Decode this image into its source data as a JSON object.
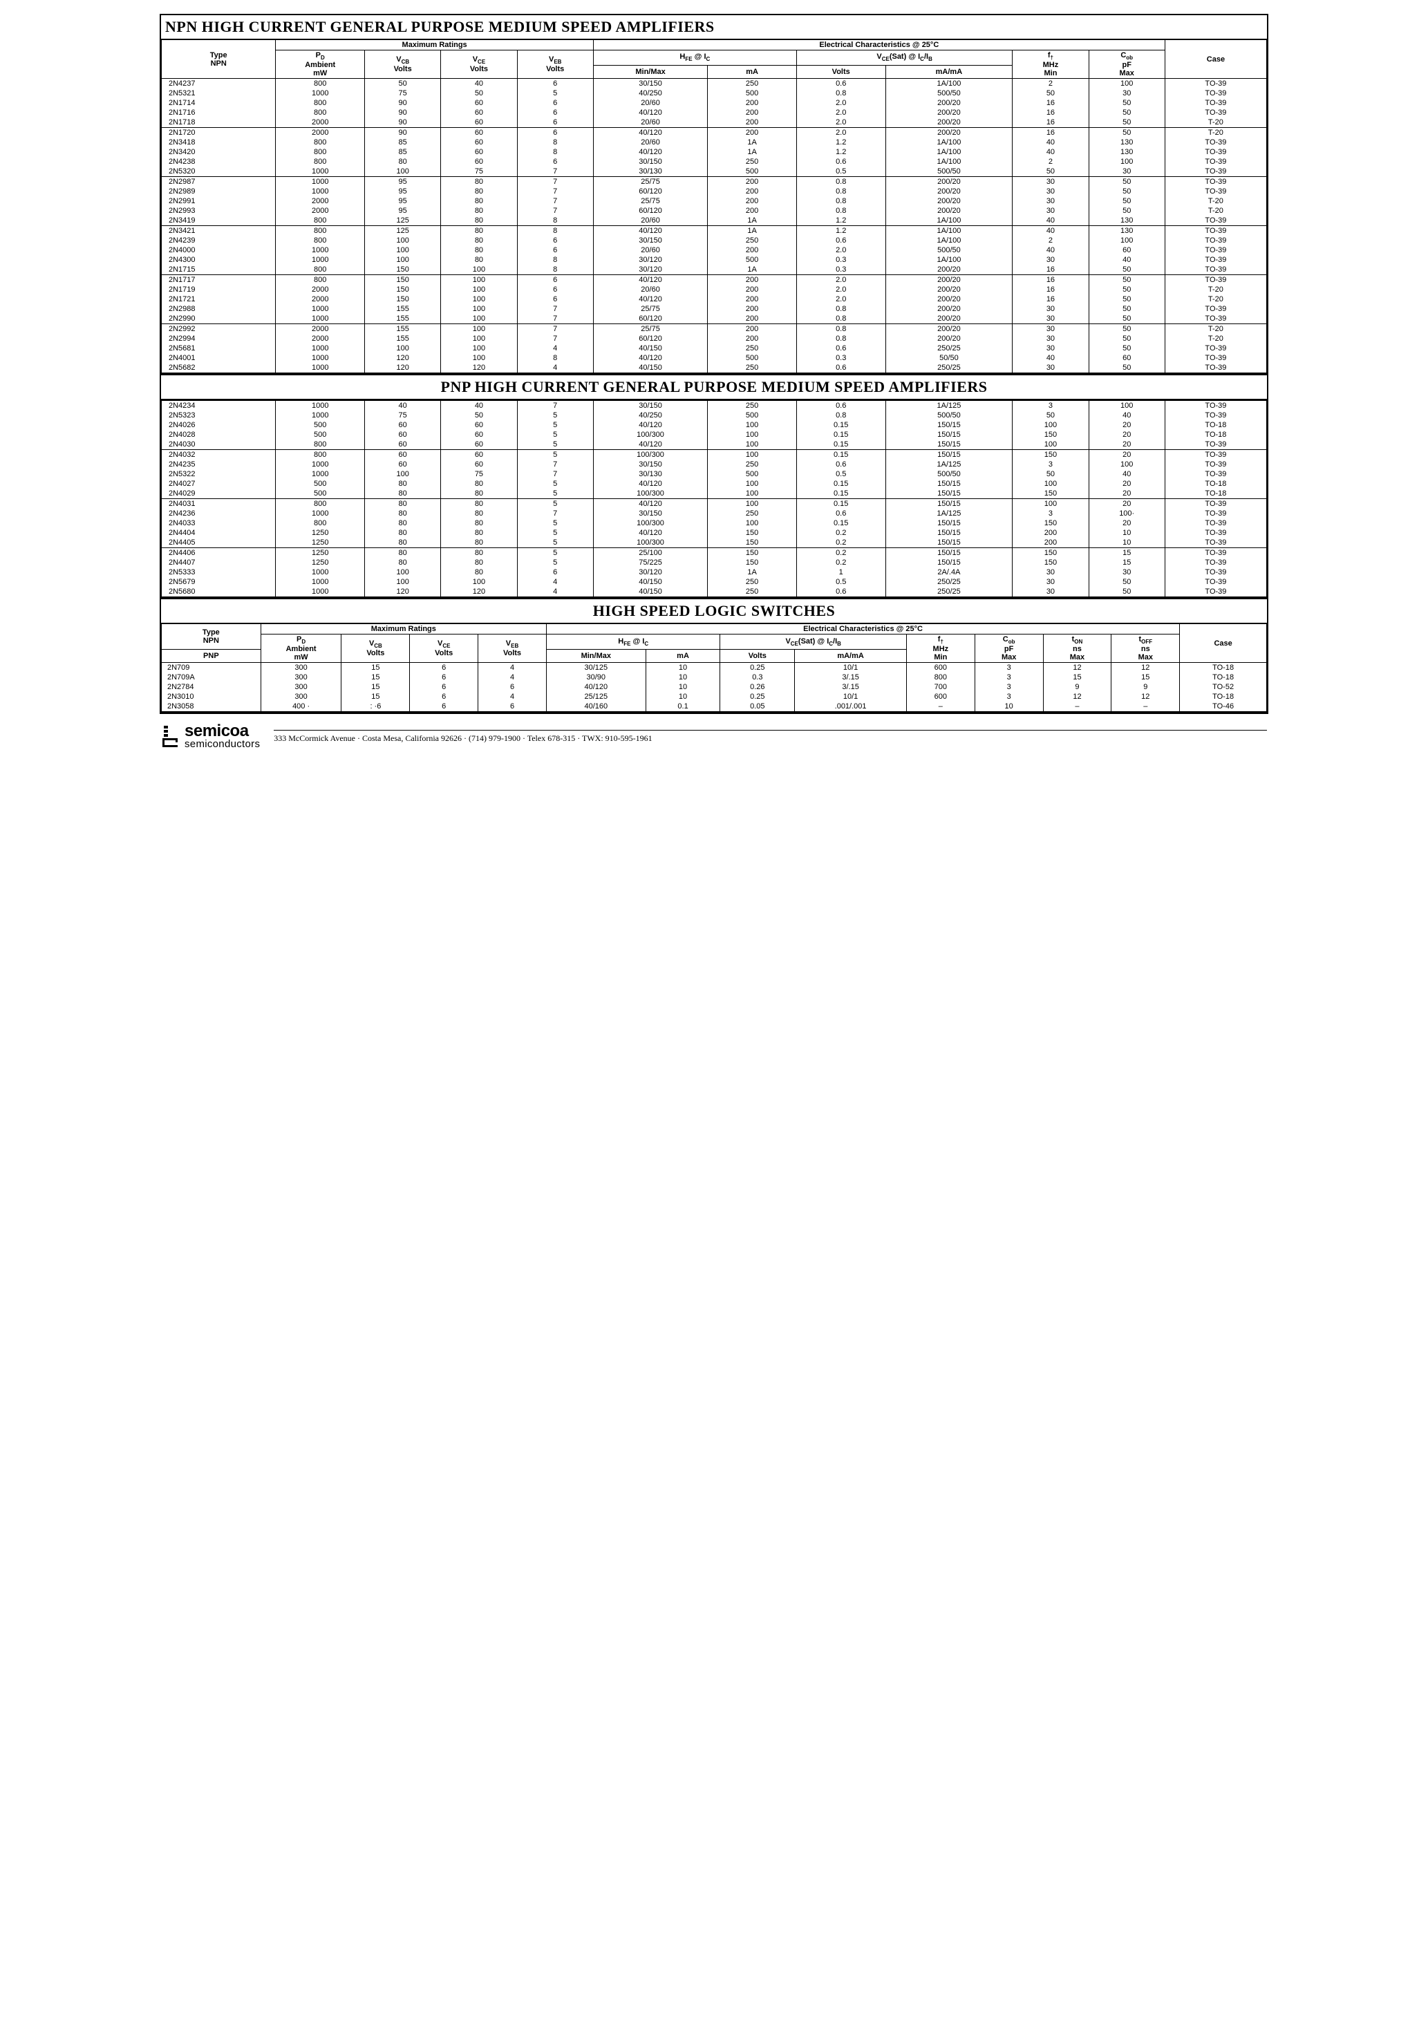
{
  "titles": {
    "npn": "NPN HIGH CURRENT GENERAL PURPOSE MEDIUM SPEED AMPLIFIERS",
    "pnp": "PNP HIGH CURRENT GENERAL PURPOSE MEDIUM SPEED AMPLIFIERS",
    "switch": "HIGH SPEED LOGIC SWITCHES"
  },
  "headers1": {
    "type": "Type\nNPN",
    "max": "Maximum Ratings",
    "elec": "Electrical Characteristics @ 25°C",
    "pd": "P<sub>D</sub>\nAmbient\nmW",
    "vcb": "V<sub>CB</sub>\nVolts",
    "vce": "V<sub>CE</sub>\nVolts",
    "veb": "V<sub>EB</sub>\nVolts",
    "hfe": "H<sub>FE</sub> @ I<sub>C</sub>",
    "minmax": "Min/Max",
    "ma": "mA",
    "vcesat": "V<sub>CE</sub>(Sat) @ I<sub>C</sub>/I<sub>B</sub>",
    "volts": "Volts",
    "mama": "mA/mA",
    "ft": "f<sub>†</sub>\nMHz\nMin",
    "cob": "C<sub>ob</sub>\npF\nMax",
    "case": "Case"
  },
  "headers2": {
    "type_npn": "Type\nNPN",
    "type_pnp": "PNP",
    "ton": "t<sub>ON</sub>\nns\nMax",
    "toff": "t<sub>OFF</sub>\nns\nMax"
  },
  "npn_groups": [
    [
      [
        "2N4237",
        "800",
        "50",
        "40",
        "6",
        "30/150",
        "250",
        "0.6",
        "1A/100",
        "2",
        "100",
        "TO-39"
      ],
      [
        "2N5321",
        "1000",
        "75",
        "50",
        "5",
        "40/250",
        "500",
        "0.8",
        "500/50",
        "50",
        "30",
        "TO-39"
      ],
      [
        "2N1714",
        "800",
        "90",
        "60",
        "6",
        "20/60",
        "200",
        "2.0",
        "200/20",
        "16",
        "50",
        "TO-39"
      ],
      [
        "2N1716",
        "800",
        "90",
        "60",
        "6",
        "40/120",
        "200",
        "2.0",
        "200/20",
        "16",
        "50",
        "TO-39"
      ],
      [
        "2N1718",
        "2000",
        "90",
        "60",
        "6",
        "20/60",
        "200",
        "2.0",
        "200/20",
        "16",
        "50",
        "T-20"
      ]
    ],
    [
      [
        "2N1720",
        "2000",
        "90",
        "60",
        "6",
        "40/120",
        "200",
        "2.0",
        "200/20",
        "16",
        "50",
        "T-20"
      ],
      [
        "2N3418",
        "800",
        "85",
        "60",
        "8",
        "20/60",
        "1A",
        "1.2",
        "1A/100",
        "40",
        "130",
        "TO-39"
      ],
      [
        "2N3420",
        "800",
        "85",
        "60",
        "8",
        "40/120",
        "1A",
        "1.2",
        "1A/100",
        "40",
        "130",
        "TO-39"
      ],
      [
        "2N4238",
        "800",
        "80",
        "60",
        "6",
        "30/150",
        "250",
        "0.6",
        "1A/100",
        "2",
        "100",
        "TO-39"
      ],
      [
        "2N5320",
        "1000",
        "100",
        "75",
        "7",
        "30/130",
        "500",
        "0.5",
        "500/50",
        "50",
        "30",
        "TO-39"
      ]
    ],
    [
      [
        "2N2987",
        "1000",
        "95",
        "80",
        "7",
        "25/75",
        "200",
        "0.8",
        "200/20",
        "30",
        "50",
        "TO-39"
      ],
      [
        "2N2989",
        "1000",
        "95",
        "80",
        "7",
        "60/120",
        "200",
        "0.8",
        "200/20",
        "30",
        "50",
        "TO-39"
      ],
      [
        "2N2991",
        "2000",
        "95",
        "80",
        "7",
        "25/75",
        "200",
        "0.8",
        "200/20",
        "30",
        "50",
        "T-20"
      ],
      [
        "2N2993",
        "2000",
        "95",
        "80",
        "7",
        "60/120",
        "200",
        "0.8",
        "200/20",
        "30",
        "50",
        "T-20"
      ],
      [
        "2N3419",
        "800",
        "125",
        "80",
        "8",
        "20/60",
        "1A",
        "1.2",
        "1A/100",
        "40",
        "130",
        "TO-39"
      ]
    ],
    [
      [
        "2N3421",
        "800",
        "125",
        "80",
        "8",
        "40/120",
        "1A",
        "1.2",
        "1A/100",
        "40",
        "130",
        "TO-39"
      ],
      [
        "2N4239",
        "800",
        "100",
        "80",
        "6",
        "30/150",
        "250",
        "0.6",
        "1A/100",
        "2",
        "100",
        "TO-39"
      ],
      [
        "2N4000",
        "1000",
        "100",
        "80",
        "6",
        "20/60",
        "200",
        "2.0",
        "500/50",
        "40",
        "60",
        "TO-39"
      ],
      [
        "2N4300",
        "1000",
        "100",
        "80",
        "8",
        "30/120",
        "500",
        "0.3",
        "1A/100",
        "30",
        "40",
        "TO-39"
      ],
      [
        "2N1715",
        "800",
        "150",
        "100",
        "8",
        "30/120",
        "1A",
        "0.3",
        "200/20",
        "16",
        "50",
        "TO-39"
      ]
    ],
    [
      [
        "2N1717",
        "800",
        "150",
        "100",
        "6",
        "40/120",
        "200",
        "2.0",
        "200/20",
        "16",
        "50",
        "TO-39"
      ],
      [
        "2N1719",
        "2000",
        "150",
        "100",
        "6",
        "20/60",
        "200",
        "2.0",
        "200/20",
        "16",
        "50",
        "T-20"
      ],
      [
        "2N1721",
        "2000",
        "150",
        "100",
        "6",
        "40/120",
        "200",
        "2.0",
        "200/20",
        "16",
        "50",
        "T-20"
      ],
      [
        "2N2988",
        "1000",
        "155",
        "100",
        "7",
        "25/75",
        "200",
        "0.8",
        "200/20",
        "30",
        "50",
        "TO-39"
      ],
      [
        "2N2990",
        "1000",
        "155",
        "100",
        "7",
        "60/120",
        "200",
        "0.8",
        "200/20",
        "30",
        "50",
        "TO-39"
      ]
    ],
    [
      [
        "2N2992",
        "2000",
        "155",
        "100",
        "7",
        "25/75",
        "200",
        "0.8",
        "200/20",
        "30",
        "50",
        "T-20"
      ],
      [
        "2N2994",
        "2000",
        "155",
        "100",
        "7",
        "60/120",
        "200",
        "0.8",
        "200/20",
        "30",
        "50",
        "T-20"
      ],
      [
        "2N5681",
        "1000",
        "100",
        "100",
        "4",
        "40/150",
        "250",
        "0.6",
        "250/25",
        "30",
        "50",
        "TO-39"
      ],
      [
        "2N4001",
        "1000",
        "120",
        "100",
        "8",
        "40/120",
        "500",
        "0.3",
        "50/50",
        "40",
        "60",
        "TO-39"
      ],
      [
        "2N5682",
        "1000",
        "120",
        "120",
        "4",
        "40/150",
        "250",
        "0.6",
        "250/25",
        "30",
        "50",
        "TO-39"
      ]
    ]
  ],
  "pnp_groups": [
    [
      [
        "2N4234",
        "1000",
        "40",
        "40",
        "7",
        "30/150",
        "250",
        "0.6",
        "1A/125",
        "3",
        "100",
        "TO-39"
      ],
      [
        "2N5323",
        "1000",
        "75",
        "50",
        "5",
        "40/250",
        "500",
        "0.8",
        "500/50",
        "50",
        "40",
        "TO-39"
      ],
      [
        "2N4026",
        "500",
        "60",
        "60",
        "5",
        "40/120",
        "100",
        "0.15",
        "150/15",
        "100",
        "20",
        "TO-18"
      ],
      [
        "2N4028",
        "500",
        "60",
        "60",
        "5",
        "100/300",
        "100",
        "0.15",
        "150/15",
        "150",
        "20",
        "TO-18"
      ],
      [
        "2N4030",
        "800",
        "60",
        "60",
        "5",
        "40/120",
        "100",
        "0.15",
        "150/15",
        "100",
        "20",
        "TO-39"
      ]
    ],
    [
      [
        "2N4032",
        "800",
        "60",
        "60",
        "5",
        "100/300",
        "100",
        "0.15",
        "150/15",
        "150",
        "20",
        "TO-39"
      ],
      [
        "2N4235",
        "1000",
        "60",
        "60",
        "7",
        "30/150",
        "250",
        "0.6",
        "1A/125",
        "3",
        "100",
        "TO-39"
      ],
      [
        "2N5322",
        "1000",
        "100",
        "75",
        "7",
        "30/130",
        "500",
        "0.5",
        "500/50",
        "50",
        "40",
        "TO-39"
      ],
      [
        "2N4027",
        "500",
        "80",
        "80",
        "5",
        "40/120",
        "100",
        "0.15",
        "150/15",
        "100",
        "20",
        "TO-18"
      ],
      [
        "2N4029",
        "500",
        "80",
        "80",
        "5",
        "100/300",
        "100",
        "0.15",
        "150/15",
        "150",
        "20",
        "TO-18"
      ]
    ],
    [
      [
        "2N4031",
        "800",
        "80",
        "80",
        "5",
        "40/120",
        "100",
        "0.15",
        "150/15",
        "100",
        "20",
        "TO-39"
      ],
      [
        "2N4236",
        "1000",
        "80",
        "80",
        "7",
        "30/150",
        "250",
        "0.6",
        "1A/125",
        "3",
        "100·",
        "TO-39"
      ],
      [
        "2N4033",
        "800",
        "80",
        "80",
        "5",
        "100/300",
        "100",
        "0.15",
        "150/15",
        "150",
        "20",
        "TO-39"
      ],
      [
        "2N4404",
        "1250",
        "80",
        "80",
        "5",
        "40/120",
        "150",
        "0.2",
        "150/15",
        "200",
        "10",
        "TO-39"
      ],
      [
        "2N4405",
        "1250",
        "80",
        "80",
        "5",
        "100/300",
        "150",
        "0.2",
        "150/15",
        "200",
        "10",
        "TO-39"
      ]
    ],
    [
      [
        "2N4406",
        "1250",
        "80",
        "80",
        "5",
        "25/100",
        "150",
        "0.2",
        "150/15",
        "150",
        "15",
        "TO-39"
      ],
      [
        "2N4407",
        "1250",
        "80",
        "80",
        "5",
        "75/225",
        "150",
        "0.2",
        "150/15",
        "150",
        "15",
        "TO-39"
      ],
      [
        "2N5333",
        "1000",
        "100",
        "80",
        "6",
        "30/120",
        "1A",
        "1",
        "2A/.4A",
        "30",
        "30",
        "TO-39"
      ],
      [
        "2N5679",
        "1000",
        "100",
        "100",
        "4",
        "40/150",
        "250",
        "0.5",
        "250/25",
        "30",
        "50",
        "TO-39"
      ],
      [
        "2N5680",
        "1000",
        "120",
        "120",
        "4",
        "40/150",
        "250",
        "0.6",
        "250/25",
        "30",
        "50",
        "TO-39"
      ]
    ]
  ],
  "switch_rows": [
    [
      "2N709",
      "300",
      "15",
      "6",
      "4",
      "30/125",
      "10",
      "0.25",
      "10/1",
      "600",
      "3",
      "12",
      "12",
      "TO-18"
    ],
    [
      "2N709A",
      "300",
      "15",
      "6",
      "4",
      "30/90",
      "10",
      "0.3",
      "3/.15",
      "800",
      "3",
      "15",
      "15",
      "TO-18"
    ],
    [
      "2N2784",
      "300",
      "15",
      "6",
      "6",
      "40/120",
      "10",
      "0.26",
      "3/.15",
      "700",
      "3",
      "9",
      "9",
      "TO-52"
    ],
    [
      "2N3010",
      "300",
      "15",
      "6",
      "4",
      "25/125",
      "10",
      "0.25",
      "10/1",
      "600",
      "3",
      "12",
      "12",
      "TO-18"
    ],
    [
      "2N3058",
      "400 ·",
      ": ·6",
      "6",
      "6",
      "40/160",
      "0.1",
      "0.05",
      ".001/.001",
      "–",
      "10",
      "–",
      "–",
      "TO-46"
    ]
  ],
  "footer": {
    "logo_top": "semicoa",
    "logo_bot": "semiconductors",
    "addr": "333 McCormick Avenue · Costa Mesa, California 92626 · (714) 979-1900 · Telex 678-315 · TWX: 910-595-1961"
  }
}
